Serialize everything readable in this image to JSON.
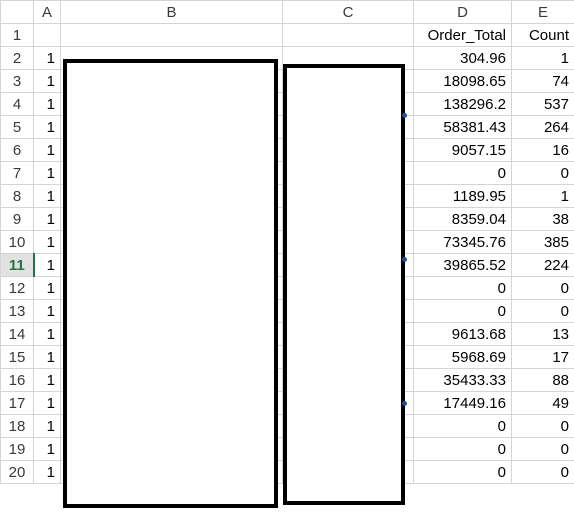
{
  "columns": [
    "A",
    "B",
    "C",
    "D",
    "E"
  ],
  "active_row": "11",
  "rows": [
    {
      "n": "1",
      "a": "",
      "b": "",
      "c": "",
      "d": "Order_Total",
      "e": "Count"
    },
    {
      "n": "2",
      "a": "1",
      "b": "",
      "c": "",
      "d": "304.96",
      "e": "1"
    },
    {
      "n": "3",
      "a": "1",
      "b": "",
      "c": "",
      "d": "18098.65",
      "e": "74"
    },
    {
      "n": "4",
      "a": "1",
      "b": "",
      "c": "",
      "d": "138296.2",
      "e": "537"
    },
    {
      "n": "5",
      "a": "1",
      "b": "",
      "c": "",
      "d": "58381.43",
      "e": "264"
    },
    {
      "n": "6",
      "a": "1",
      "b": "",
      "c": "",
      "d": "9057.15",
      "e": "16"
    },
    {
      "n": "7",
      "a": "1",
      "b": "",
      "c": "",
      "d": "0",
      "e": "0"
    },
    {
      "n": "8",
      "a": "1",
      "b": "",
      "c": "",
      "d": "1189.95",
      "e": "1"
    },
    {
      "n": "9",
      "a": "1",
      "b": "",
      "c": "",
      "d": "8359.04",
      "e": "38"
    },
    {
      "n": "10",
      "a": "1",
      "b": "",
      "c": "",
      "d": "73345.76",
      "e": "385"
    },
    {
      "n": "11",
      "a": "1",
      "b": "",
      "c": "",
      "d": "39865.52",
      "e": "224"
    },
    {
      "n": "12",
      "a": "1",
      "b": "",
      "c": "",
      "d": "0",
      "e": "0"
    },
    {
      "n": "13",
      "a": "1",
      "b": "",
      "c": "",
      "d": "0",
      "e": "0"
    },
    {
      "n": "14",
      "a": "1",
      "b": "",
      "c": "",
      "d": "9613.68",
      "e": "13"
    },
    {
      "n": "15",
      "a": "1",
      "b": "",
      "c": "",
      "d": "5968.69",
      "e": "17"
    },
    {
      "n": "16",
      "a": "1",
      "b": "",
      "c": "",
      "d": "35433.33",
      "e": "88"
    },
    {
      "n": "17",
      "a": "1",
      "b": "",
      "c": "",
      "d": "17449.16",
      "e": "49"
    },
    {
      "n": "18",
      "a": "1",
      "b": "",
      "c": "",
      "d": "0",
      "e": "0"
    },
    {
      "n": "19",
      "a": "1",
      "b": "",
      "c": "",
      "d": "0",
      "e": "0"
    },
    {
      "n": "20",
      "a": "1",
      "b": "",
      "c": "",
      "d": "0",
      "e": "0"
    }
  ]
}
